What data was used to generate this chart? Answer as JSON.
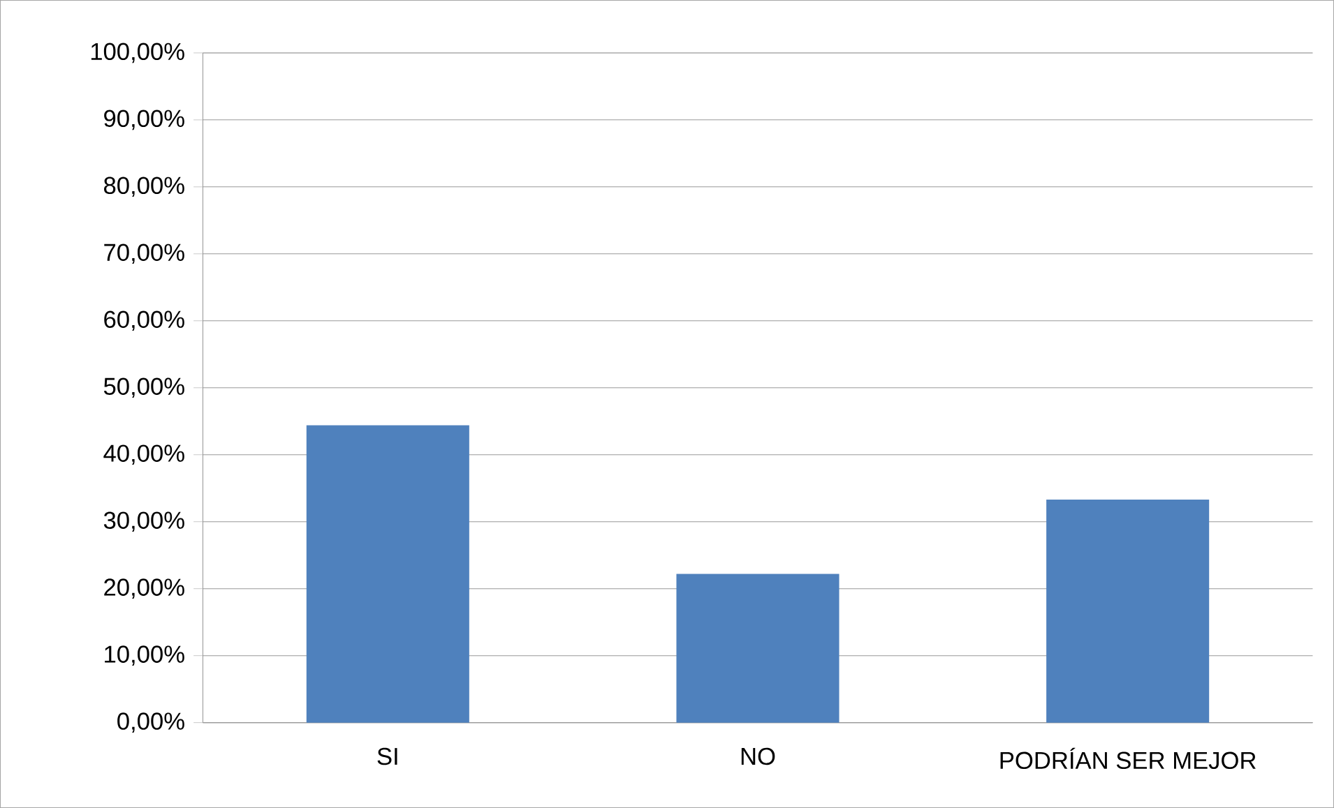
{
  "chart_data": {
    "type": "bar",
    "categories": [
      "SI",
      "NO",
      "PODRÍAN SER MEJOR"
    ],
    "values": [
      44.4,
      22.2,
      33.3
    ],
    "color": "#4f81bd",
    "ylim": [
      0,
      100
    ],
    "yticks": [
      {
        "value": 0,
        "label": "0,00%"
      },
      {
        "value": 10,
        "label": "10,00%"
      },
      {
        "value": 20,
        "label": "20,00%"
      },
      {
        "value": 30,
        "label": "30,00%"
      },
      {
        "value": 40,
        "label": "40,00%"
      },
      {
        "value": 50,
        "label": "50,00%"
      },
      {
        "value": 60,
        "label": "60,00%"
      },
      {
        "value": 70,
        "label": "70,00%"
      },
      {
        "value": 80,
        "label": "80,00%"
      },
      {
        "value": 90,
        "label": "90,00%"
      },
      {
        "value": 100,
        "label": "100,00%"
      }
    ],
    "grid": "y"
  }
}
